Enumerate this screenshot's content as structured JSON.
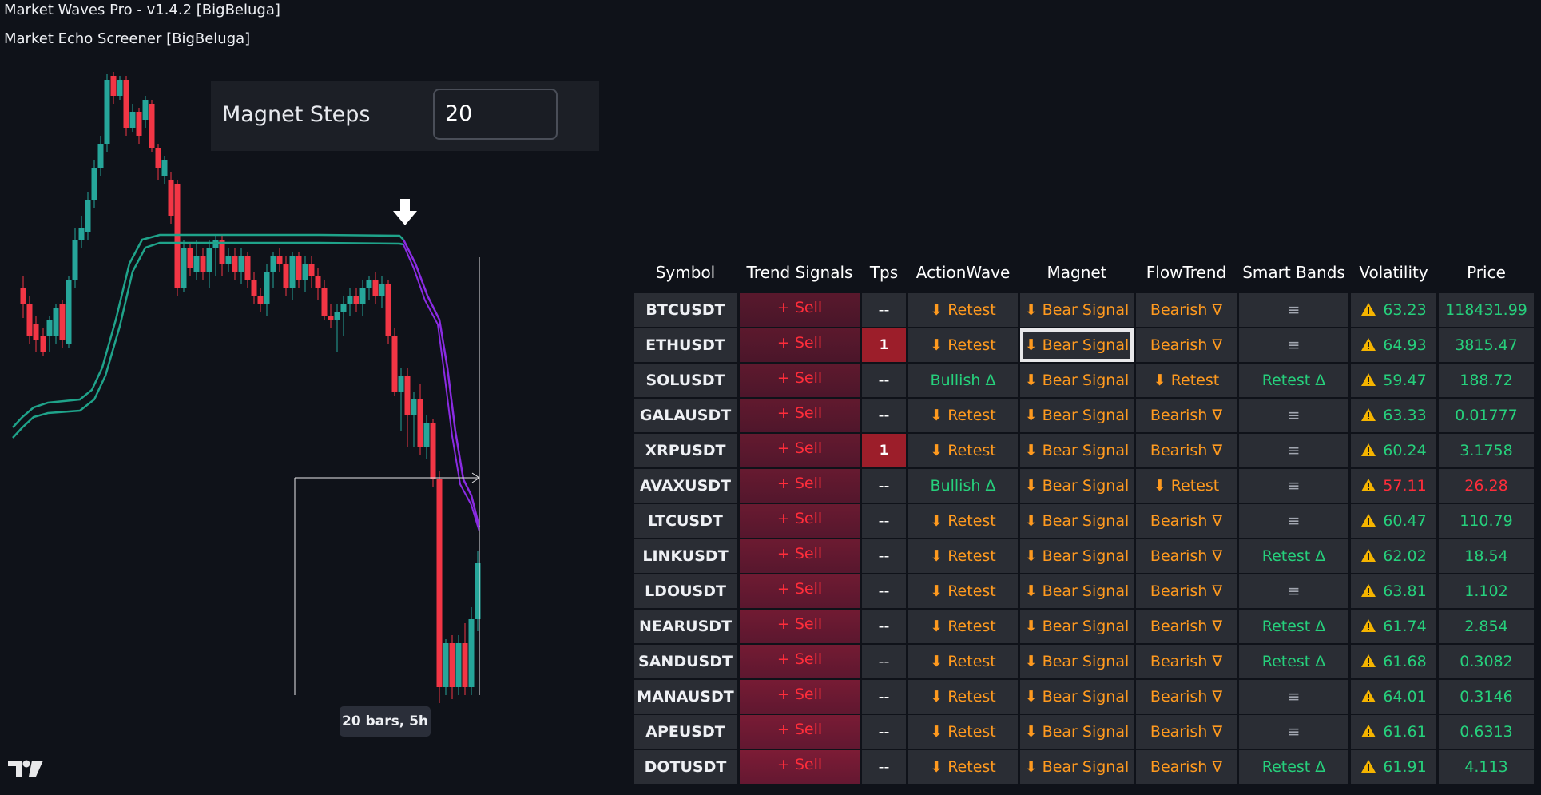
{
  "indicators": {
    "title_1": "Market Waves Pro - v1.4.2 [BigBeluga]",
    "title_2": "Market Echo Screener [BigBeluga]"
  },
  "magnet_panel": {
    "label": "Magnet Steps",
    "value": "20"
  },
  "measure_tool": {
    "label": "20 bars, 5h"
  },
  "colors": {
    "bull": "#26a69a",
    "bear": "#f23645",
    "band": "#1fa38a",
    "magnet_line": "#8a2be2",
    "sell_text": "#ff2d3a",
    "orange_text": "#ff9a1f",
    "green_text": "#26d07c"
  },
  "screener": {
    "headers": [
      "Symbol",
      "Trend Signals",
      "Tps",
      "ActionWave",
      "Magnet",
      "FlowTrend",
      "Smart Bands",
      "Volatility",
      "Price"
    ],
    "rows": [
      {
        "symbol": "BTCUSDT",
        "trend": "+ Sell",
        "tps": "--",
        "action": "⬇ Retest",
        "action_color": "orange",
        "magnet": "⬇ Bear Signal",
        "flow": "Bearish ∇",
        "flow_color": "orange",
        "bands": "≡",
        "bands_color": "muted",
        "vol": "63.23",
        "vol_color": "green",
        "price": "118431.99",
        "price_color": "green"
      },
      {
        "symbol": "ETHUSDT",
        "trend": "+ Sell",
        "tps": "1",
        "action": "⬇ Retest",
        "action_color": "orange",
        "magnet": "⬇ Bear Signal",
        "flow": "Bearish ∇",
        "flow_color": "orange",
        "bands": "≡",
        "bands_color": "muted",
        "vol": "64.93",
        "vol_color": "green",
        "price": "3815.47",
        "price_color": "green"
      },
      {
        "symbol": "SOLUSDT",
        "trend": "+ Sell",
        "tps": "--",
        "action": "Bullish Δ",
        "action_color": "green",
        "magnet": "⬇ Bear Signal",
        "flow": "⬇ Retest",
        "flow_color": "orange",
        "bands": "Retest Δ",
        "bands_color": "green",
        "vol": "59.47",
        "vol_color": "green",
        "price": "188.72",
        "price_color": "green"
      },
      {
        "symbol": "GALAUSDT",
        "trend": "+ Sell",
        "tps": "--",
        "action": "⬇ Retest",
        "action_color": "orange",
        "magnet": "⬇ Bear Signal",
        "flow": "Bearish ∇",
        "flow_color": "orange",
        "bands": "≡",
        "bands_color": "muted",
        "vol": "63.33",
        "vol_color": "green",
        "price": "0.01777",
        "price_color": "green"
      },
      {
        "symbol": "XRPUSDT",
        "trend": "+ Sell",
        "tps": "1",
        "action": "⬇ Retest",
        "action_color": "orange",
        "magnet": "⬇ Bear Signal",
        "flow": "Bearish ∇",
        "flow_color": "orange",
        "bands": "≡",
        "bands_color": "muted",
        "vol": "60.24",
        "vol_color": "green",
        "price": "3.1758",
        "price_color": "green"
      },
      {
        "symbol": "AVAXUSDT",
        "trend": "+ Sell",
        "tps": "--",
        "action": "Bullish Δ",
        "action_color": "green",
        "magnet": "⬇ Bear Signal",
        "flow": "⬇ Retest",
        "flow_color": "orange",
        "bands": "≡",
        "bands_color": "muted",
        "vol": "57.11",
        "vol_color": "red",
        "price": "26.28",
        "price_color": "red"
      },
      {
        "symbol": "LTCUSDT",
        "trend": "+ Sell",
        "tps": "--",
        "action": "⬇ Retest",
        "action_color": "orange",
        "magnet": "⬇ Bear Signal",
        "flow": "Bearish ∇",
        "flow_color": "orange",
        "bands": "≡",
        "bands_color": "muted",
        "vol": "60.47",
        "vol_color": "green",
        "price": "110.79",
        "price_color": "green"
      },
      {
        "symbol": "LINKUSDT",
        "trend": "+ Sell",
        "tps": "--",
        "action": "⬇ Retest",
        "action_color": "orange",
        "magnet": "⬇ Bear Signal",
        "flow": "Bearish ∇",
        "flow_color": "orange",
        "bands": "Retest Δ",
        "bands_color": "green",
        "vol": "62.02",
        "vol_color": "green",
        "price": "18.54",
        "price_color": "green"
      },
      {
        "symbol": "LDOUSDT",
        "trend": "+ Sell",
        "tps": "--",
        "action": "⬇ Retest",
        "action_color": "orange",
        "magnet": "⬇ Bear Signal",
        "flow": "Bearish ∇",
        "flow_color": "orange",
        "bands": "≡",
        "bands_color": "muted",
        "vol": "63.81",
        "vol_color": "green",
        "price": "1.102",
        "price_color": "green"
      },
      {
        "symbol": "NEARUSDT",
        "trend": "+ Sell",
        "tps": "--",
        "action": "⬇ Retest",
        "action_color": "orange",
        "magnet": "⬇ Bear Signal",
        "flow": "Bearish ∇",
        "flow_color": "orange",
        "bands": "Retest Δ",
        "bands_color": "green",
        "vol": "61.74",
        "vol_color": "green",
        "price": "2.854",
        "price_color": "green"
      },
      {
        "symbol": "SANDUSDT",
        "trend": "+ Sell",
        "tps": "--",
        "action": "⬇ Retest",
        "action_color": "orange",
        "magnet": "⬇ Bear Signal",
        "flow": "Bearish ∇",
        "flow_color": "orange",
        "bands": "Retest Δ",
        "bands_color": "green",
        "vol": "61.68",
        "vol_color": "green",
        "price": "0.3082",
        "price_color": "green"
      },
      {
        "symbol": "MANAUSDT",
        "trend": "+ Sell",
        "tps": "--",
        "action": "⬇ Retest",
        "action_color": "orange",
        "magnet": "⬇ Bear Signal",
        "flow": "Bearish ∇",
        "flow_color": "orange",
        "bands": "≡",
        "bands_color": "muted",
        "vol": "64.01",
        "vol_color": "green",
        "price": "0.3146",
        "price_color": "green"
      },
      {
        "symbol": "APEUSDT",
        "trend": "+ Sell",
        "tps": "--",
        "action": "⬇ Retest",
        "action_color": "orange",
        "magnet": "⬇ Bear Signal",
        "flow": "Bearish ∇",
        "flow_color": "orange",
        "bands": "≡",
        "bands_color": "muted",
        "vol": "61.61",
        "vol_color": "green",
        "price": "0.6313",
        "price_color": "green"
      },
      {
        "symbol": "DOTUSDT",
        "trend": "+ Sell",
        "tps": "--",
        "action": "⬇ Retest",
        "action_color": "orange",
        "magnet": "⬇ Bear Signal",
        "flow": "Bearish ∇",
        "flow_color": "orange",
        "bands": "Retest Δ",
        "bands_color": "green",
        "vol": "61.91",
        "vol_color": "green",
        "price": "4.113",
        "price_color": "green"
      }
    ]
  },
  "icons": {
    "signal_arrow": "down-arrow-icon",
    "warning": "warning-icon",
    "logo": "tradingview-logo"
  }
}
